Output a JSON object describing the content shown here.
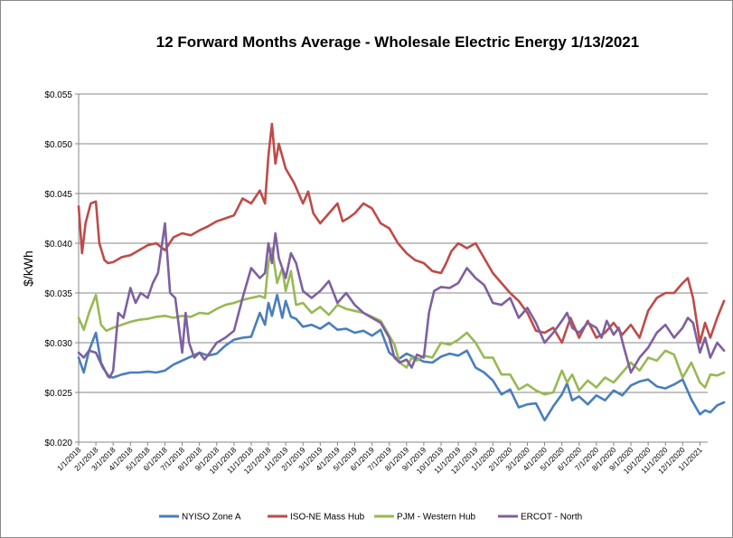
{
  "chart_data": {
    "type": "line",
    "title": "12 Forward Months Average - Wholesale Electric Energy 1/13/2021",
    "xlabel": "",
    "ylabel": "$/kWh",
    "ylim": [
      0.02,
      0.055
    ],
    "yticks": [
      "$0.020",
      "$0.025",
      "$0.030",
      "$0.035",
      "$0.040",
      "$0.045",
      "$0.050",
      "$0.055"
    ],
    "ytick_values": [
      0.02,
      0.025,
      0.03,
      0.035,
      0.04,
      0.045,
      0.05,
      0.055
    ],
    "xticks": [
      "1/1/2018",
      "2/1/2018",
      "3/1/2018",
      "4/1/2018",
      "5/1/2018",
      "6/1/2018",
      "7/1/2018",
      "8/1/2018",
      "9/1/2018",
      "10/1/2018",
      "11/1/2018",
      "12/1/2018",
      "1/1/2019",
      "2/1/2019",
      "3/1/2019",
      "4/1/2019",
      "5/1/2019",
      "6/1/2019",
      "7/1/2019",
      "8/1/2019",
      "9/1/2019",
      "10/1/2019",
      "11/1/2019",
      "12/1/2019",
      "1/1/2020",
      "2/1/2020",
      "3/1/2020",
      "4/1/2020",
      "5/1/2020",
      "6/1/2020",
      "7/1/2020",
      "8/1/2020",
      "9/1/2020",
      "10/1/2020",
      "11/1/2020",
      "12/1/2020",
      "1/1/2021"
    ],
    "x_units": "months since 1/1/2018",
    "grid": "horizontal",
    "legend_position": "bottom",
    "series": [
      {
        "name": "NYISO Zone A",
        "color": "#4a7ebb",
        "x": [
          0,
          0.3,
          0.6,
          1.0,
          1.3,
          1.7,
          2.0,
          2.5,
          3.0,
          3.5,
          4.0,
          4.5,
          5.0,
          5.5,
          6.0,
          6.5,
          7.0,
          7.5,
          8.0,
          8.5,
          9.0,
          9.5,
          10.0,
          10.5,
          10.8,
          11.0,
          11.2,
          11.5,
          11.8,
          12.0,
          12.3,
          12.6,
          13.0,
          13.5,
          14.0,
          14.5,
          15.0,
          15.5,
          16.0,
          16.5,
          17.0,
          17.5,
          18.0,
          18.5,
          19.0,
          19.5,
          20.0,
          20.5,
          21.0,
          21.5,
          22.0,
          22.5,
          23.0,
          23.5,
          24.0,
          24.5,
          25.0,
          25.5,
          26.0,
          26.5,
          27.0,
          27.5,
          28.0,
          28.3,
          28.6,
          29.0,
          29.5,
          30.0,
          30.5,
          31.0,
          31.5,
          32.0,
          32.5,
          33.0,
          33.5,
          34.0,
          34.5,
          35.0,
          35.5,
          36.0,
          36.3,
          36.6,
          37.0,
          37.4
        ],
        "y": [
          0.0285,
          0.027,
          0.0292,
          0.031,
          0.028,
          0.0266,
          0.0265,
          0.0268,
          0.027,
          0.027,
          0.0271,
          0.027,
          0.0272,
          0.0278,
          0.0282,
          0.0286,
          0.029,
          0.0287,
          0.0289,
          0.0297,
          0.0303,
          0.0305,
          0.0306,
          0.033,
          0.0318,
          0.034,
          0.0327,
          0.0348,
          0.0325,
          0.0342,
          0.0326,
          0.0324,
          0.0316,
          0.0318,
          0.0314,
          0.032,
          0.0313,
          0.0314,
          0.031,
          0.0312,
          0.0307,
          0.0313,
          0.029,
          0.0283,
          0.0289,
          0.0285,
          0.0281,
          0.028,
          0.0286,
          0.0289,
          0.0287,
          0.0292,
          0.0275,
          0.027,
          0.0262,
          0.0248,
          0.0253,
          0.0235,
          0.0238,
          0.0239,
          0.0222,
          0.0236,
          0.0248,
          0.0259,
          0.0242,
          0.0246,
          0.0238,
          0.0247,
          0.0242,
          0.0252,
          0.0247,
          0.0257,
          0.0261,
          0.0263,
          0.0256,
          0.0254,
          0.0258,
          0.0263,
          0.0243,
          0.0228,
          0.0232,
          0.023,
          0.0237,
          0.024
        ]
      },
      {
        "name": "ISO-NE Mass Hub",
        "color": "#be4b48",
        "x": [
          0,
          0.2,
          0.4,
          0.7,
          1.0,
          1.2,
          1.5,
          1.7,
          2.0,
          2.5,
          3.0,
          3.5,
          4.0,
          4.5,
          5.0,
          5.5,
          6.0,
          6.5,
          7.0,
          7.5,
          8.0,
          8.5,
          9.0,
          9.5,
          10.0,
          10.5,
          10.8,
          11.0,
          11.2,
          11.4,
          11.6,
          12.0,
          12.5,
          13.0,
          13.3,
          13.6,
          14.0,
          14.5,
          15.0,
          15.3,
          15.6,
          16.0,
          16.5,
          17.0,
          17.5,
          18.0,
          18.5,
          19.0,
          19.5,
          20.0,
          20.5,
          21.0,
          21.3,
          21.6,
          22.0,
          22.5,
          23.0,
          23.5,
          24.0,
          24.5,
          25.0,
          25.5,
          26.0,
          26.5,
          27.0,
          27.5,
          28.0,
          28.5,
          29.0,
          29.5,
          30.0,
          30.5,
          31.0,
          31.5,
          32.0,
          32.5,
          33.0,
          33.5,
          34.0,
          34.5,
          35.0,
          35.3,
          35.6,
          36.0,
          36.3,
          36.6,
          37.0,
          37.4
        ],
        "y": [
          0.0437,
          0.039,
          0.042,
          0.044,
          0.0442,
          0.04,
          0.0383,
          0.038,
          0.0381,
          0.0386,
          0.0388,
          0.0393,
          0.0398,
          0.04,
          0.0393,
          0.0406,
          0.041,
          0.0408,
          0.0413,
          0.0417,
          0.0422,
          0.0425,
          0.0428,
          0.0445,
          0.044,
          0.0453,
          0.044,
          0.0488,
          0.052,
          0.048,
          0.05,
          0.0475,
          0.046,
          0.044,
          0.0452,
          0.043,
          0.042,
          0.043,
          0.044,
          0.0422,
          0.0425,
          0.043,
          0.044,
          0.0435,
          0.042,
          0.0415,
          0.04,
          0.039,
          0.0383,
          0.038,
          0.0372,
          0.037,
          0.038,
          0.0392,
          0.04,
          0.0395,
          0.04,
          0.0385,
          0.037,
          0.036,
          0.035,
          0.0342,
          0.033,
          0.0312,
          0.031,
          0.0315,
          0.03,
          0.0325,
          0.0305,
          0.0322,
          0.0305,
          0.031,
          0.032,
          0.0308,
          0.0318,
          0.0305,
          0.0332,
          0.0345,
          0.035,
          0.035,
          0.036,
          0.0365,
          0.0345,
          0.03,
          0.032,
          0.0305,
          0.0325,
          0.0342
        ]
      },
      {
        "name": "PJM - Western Hub",
        "color": "#98b954",
        "x": [
          0,
          0.3,
          0.6,
          1.0,
          1.3,
          1.6,
          2.0,
          2.5,
          3.0,
          3.5,
          4.0,
          4.5,
          5.0,
          5.5,
          6.0,
          6.5,
          7.0,
          7.5,
          8.0,
          8.5,
          9.0,
          9.5,
          10.0,
          10.5,
          10.8,
          11.0,
          11.2,
          11.5,
          11.8,
          12.0,
          12.3,
          12.6,
          13.0,
          13.5,
          14.0,
          14.5,
          15.0,
          15.5,
          16.0,
          16.5,
          17.0,
          17.5,
          18.0,
          18.3,
          18.6,
          19.0,
          19.3,
          19.6,
          20.0,
          20.5,
          21.0,
          21.5,
          22.0,
          22.5,
          23.0,
          23.5,
          24.0,
          24.5,
          25.0,
          25.5,
          26.0,
          26.5,
          27.0,
          27.5,
          28.0,
          28.3,
          28.6,
          29.0,
          29.5,
          30.0,
          30.5,
          31.0,
          31.5,
          32.0,
          32.5,
          33.0,
          33.5,
          34.0,
          34.5,
          35.0,
          35.5,
          36.0,
          36.3,
          36.6,
          37.0,
          37.4
        ],
        "y": [
          0.0325,
          0.0313,
          0.033,
          0.0348,
          0.0318,
          0.0312,
          0.0315,
          0.0318,
          0.0321,
          0.0323,
          0.0324,
          0.0326,
          0.0327,
          0.0325,
          0.0327,
          0.0326,
          0.033,
          0.0329,
          0.0334,
          0.0338,
          0.034,
          0.0343,
          0.0345,
          0.0347,
          0.0345,
          0.038,
          0.0395,
          0.036,
          0.0375,
          0.0352,
          0.0372,
          0.0338,
          0.034,
          0.033,
          0.0336,
          0.0328,
          0.0338,
          0.0334,
          0.0332,
          0.033,
          0.0326,
          0.0322,
          0.0307,
          0.0298,
          0.028,
          0.0275,
          0.0285,
          0.0282,
          0.0287,
          0.0285,
          0.03,
          0.0298,
          0.0303,
          0.031,
          0.03,
          0.0285,
          0.0285,
          0.0268,
          0.0268,
          0.0253,
          0.0258,
          0.0252,
          0.0248,
          0.025,
          0.0272,
          0.026,
          0.0268,
          0.0252,
          0.0262,
          0.0255,
          0.0265,
          0.026,
          0.027,
          0.028,
          0.0272,
          0.0285,
          0.0282,
          0.0292,
          0.0288,
          0.0265,
          0.028,
          0.026,
          0.0255,
          0.0268,
          0.0267,
          0.027
        ]
      },
      {
        "name": "ERCOT - North",
        "color": "#7d60a0",
        "x": [
          0,
          0.3,
          0.6,
          1.0,
          1.4,
          1.8,
          2.0,
          2.3,
          2.6,
          3.0,
          3.3,
          3.6,
          4.0,
          4.3,
          4.6,
          5.0,
          5.3,
          5.6,
          6.0,
          6.2,
          6.4,
          6.7,
          7.0,
          7.3,
          7.6,
          8.0,
          8.5,
          9.0,
          9.5,
          10.0,
          10.5,
          10.8,
          11.0,
          11.2,
          11.4,
          11.6,
          12.0,
          12.3,
          12.6,
          13.0,
          13.5,
          14.0,
          14.5,
          15.0,
          15.5,
          16.0,
          16.5,
          17.0,
          17.5,
          18.0,
          18.3,
          18.6,
          19.0,
          19.3,
          19.6,
          20.0,
          20.3,
          20.6,
          21.0,
          21.5,
          22.0,
          22.5,
          23.0,
          23.5,
          24.0,
          24.5,
          25.0,
          25.5,
          26.0,
          26.5,
          27.0,
          27.5,
          28.0,
          28.3,
          28.6,
          29.0,
          29.5,
          30.0,
          30.3,
          30.6,
          31.0,
          31.3,
          31.6,
          32.0,
          32.5,
          33.0,
          33.5,
          34.0,
          34.5,
          35.0,
          35.3,
          35.6,
          36.0,
          36.3,
          36.6,
          37.0,
          37.4
        ],
        "y": [
          0.029,
          0.0285,
          0.0292,
          0.029,
          0.0275,
          0.0265,
          0.0272,
          0.033,
          0.0325,
          0.0355,
          0.034,
          0.035,
          0.0345,
          0.036,
          0.037,
          0.042,
          0.035,
          0.0345,
          0.029,
          0.033,
          0.03,
          0.0285,
          0.029,
          0.0283,
          0.029,
          0.03,
          0.0305,
          0.0312,
          0.0345,
          0.0375,
          0.0365,
          0.037,
          0.04,
          0.038,
          0.041,
          0.0385,
          0.0365,
          0.039,
          0.038,
          0.0352,
          0.0345,
          0.0352,
          0.0362,
          0.034,
          0.035,
          0.0338,
          0.033,
          0.0325,
          0.032,
          0.0305,
          0.0285,
          0.028,
          0.0283,
          0.0275,
          0.0288,
          0.0285,
          0.033,
          0.0352,
          0.0356,
          0.0355,
          0.036,
          0.0375,
          0.0365,
          0.0358,
          0.034,
          0.0338,
          0.0345,
          0.0325,
          0.0335,
          0.032,
          0.03,
          0.031,
          0.0322,
          0.033,
          0.0315,
          0.031,
          0.032,
          0.0315,
          0.0305,
          0.0322,
          0.0308,
          0.0315,
          0.0295,
          0.027,
          0.0285,
          0.0295,
          0.031,
          0.0318,
          0.0305,
          0.0315,
          0.0325,
          0.032,
          0.029,
          0.0305,
          0.0285,
          0.03,
          0.0292
        ]
      }
    ]
  }
}
